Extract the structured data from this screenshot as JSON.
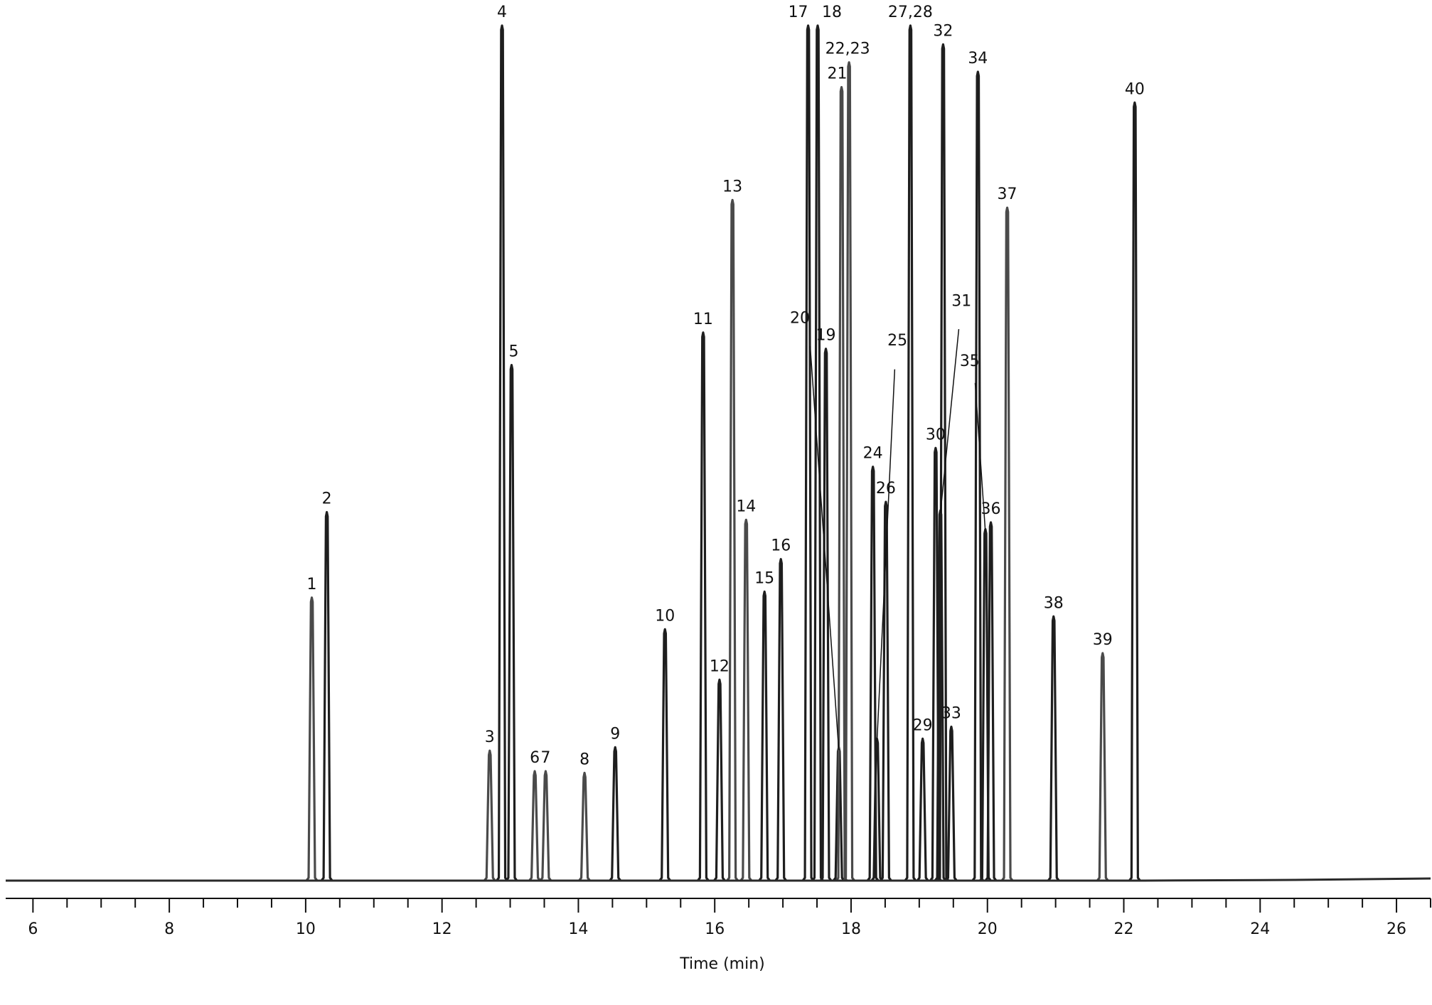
{
  "chart_data": {
    "type": "line",
    "title": "",
    "xlabel": "Time (min)",
    "ylabel": "",
    "xlim": [
      5.6,
      26.5
    ],
    "ylim": [
      0,
      100
    ],
    "grid": false,
    "x_ticks": [
      6,
      8,
      10,
      12,
      14,
      16,
      18,
      20,
      22,
      24,
      26
    ],
    "x_minor_step": 0.5,
    "colors": {
      "peak_dark": "#1e1e1e",
      "peak_gray": "#4a4a4a",
      "baseline": "#2a2a2a",
      "text": "#111111"
    },
    "peaks": [
      {
        "label": "1",
        "x": 10.09,
        "y": 33.1
      },
      {
        "label": "2",
        "x": 10.31,
        "y": 43.1
      },
      {
        "label": "3",
        "x": 12.7,
        "y": 15.2
      },
      {
        "label": "4",
        "x": 12.88,
        "y": 100
      },
      {
        "label": "5",
        "x": 13.02,
        "y": 60.3
      },
      {
        "label": "6",
        "x": 13.36,
        "y": 12.8
      },
      {
        "label": "7",
        "x": 13.52,
        "y": 12.8
      },
      {
        "label": "8",
        "x": 14.09,
        "y": 12.6
      },
      {
        "label": "9",
        "x": 14.54,
        "y": 15.6
      },
      {
        "label": "10",
        "x": 15.27,
        "y": 29.4
      },
      {
        "label": "11",
        "x": 15.83,
        "y": 64.1
      },
      {
        "label": "12",
        "x": 16.07,
        "y": 23.5
      },
      {
        "label": "13",
        "x": 16.26,
        "y": 79.6
      },
      {
        "label": "14",
        "x": 16.46,
        "y": 42.2
      },
      {
        "label": "15",
        "x": 16.73,
        "y": 33.8
      },
      {
        "label": "16",
        "x": 16.97,
        "y": 37.6
      },
      {
        "label": "17",
        "x": 17.37,
        "y": 100
      },
      {
        "label": "18",
        "x": 17.51,
        "y": 100
      },
      {
        "label": "19",
        "x": 17.63,
        "y": 62.2
      },
      {
        "label": "20",
        "x": 17.82,
        "y": 15.6
      },
      {
        "label": "21",
        "x": 17.86,
        "y": 92.8
      },
      {
        "label": "22,23",
        "x": 17.97,
        "y": 95.7
      },
      {
        "label": "24",
        "x": 18.32,
        "y": 48.4
      },
      {
        "label": "25",
        "x": 18.38,
        "y": 16.6
      },
      {
        "label": "26",
        "x": 18.51,
        "y": 44.3
      },
      {
        "label": "27,28",
        "x": 18.87,
        "y": 100
      },
      {
        "label": "29",
        "x": 19.05,
        "y": 16.6
      },
      {
        "label": "30",
        "x": 19.24,
        "y": 50.6
      },
      {
        "label": "31",
        "x": 19.31,
        "y": 43.3
      },
      {
        "label": "32",
        "x": 19.35,
        "y": 97.8
      },
      {
        "label": "33",
        "x": 19.47,
        "y": 18.0
      },
      {
        "label": "34",
        "x": 19.86,
        "y": 94.6
      },
      {
        "label": "35",
        "x": 19.97,
        "y": 41.1
      },
      {
        "label": "36",
        "x": 20.05,
        "y": 41.9
      },
      {
        "label": "37",
        "x": 20.29,
        "y": 78.7
      },
      {
        "label": "38",
        "x": 20.97,
        "y": 30.9
      },
      {
        "label": "39",
        "x": 21.69,
        "y": 26.6
      },
      {
        "label": "40",
        "x": 22.16,
        "y": 91.0
      }
    ]
  }
}
